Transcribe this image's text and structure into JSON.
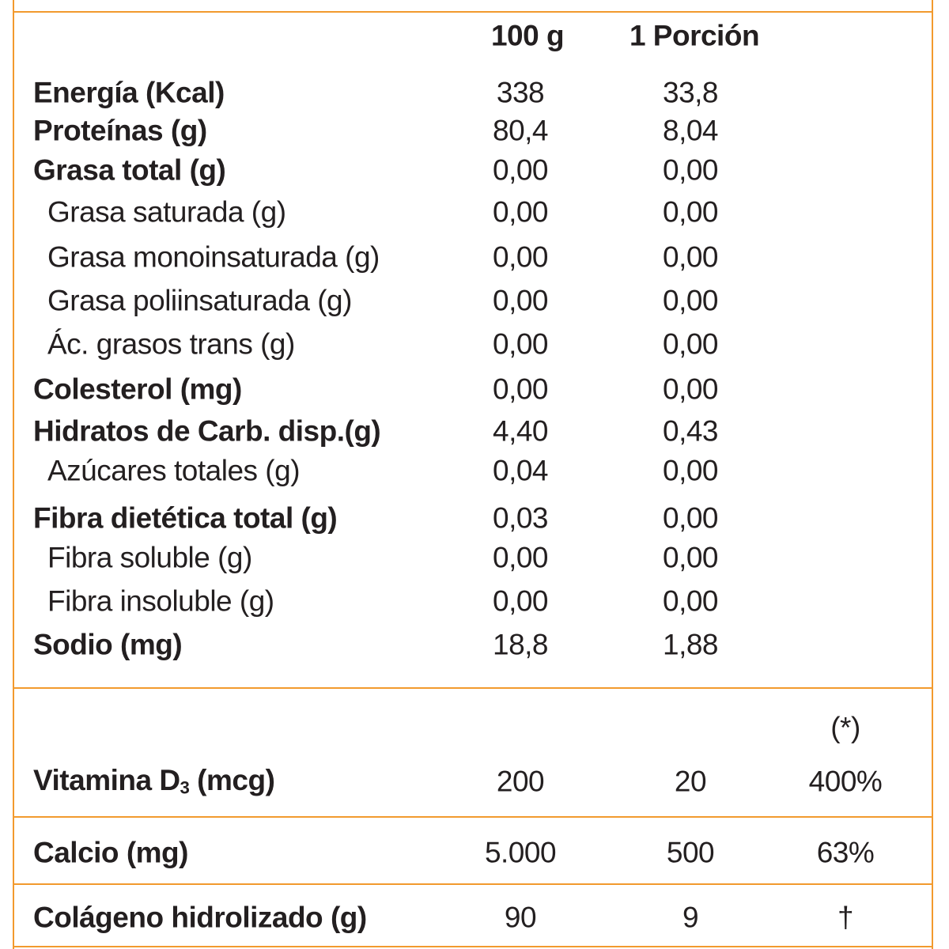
{
  "header": {
    "columns": [
      "100 g",
      "1 Porción"
    ]
  },
  "rows": [
    {
      "label": "Energía (Kcal)",
      "per_100g": "338",
      "per_portion": "33,8",
      "bold": true
    },
    {
      "label": "Proteínas (g)",
      "per_100g": "80,4",
      "per_portion": "8,04",
      "bold": true
    },
    {
      "label": "Grasa total (g)",
      "per_100g": "0,00",
      "per_portion": "0,00",
      "bold": true
    },
    {
      "label": "Grasa saturada (g)",
      "per_100g": "0,00",
      "per_portion": "0,00",
      "bold": false
    },
    {
      "label": "Grasa monoinsaturada (g)",
      "per_100g": "0,00",
      "per_portion": "0,00",
      "bold": false
    },
    {
      "label": "Grasa poliinsaturada (g)",
      "per_100g": "0,00",
      "per_portion": "0,00",
      "bold": false
    },
    {
      "label": "Ác. grasos trans (g)",
      "per_100g": "0,00",
      "per_portion": "0,00",
      "bold": false
    },
    {
      "label": "Colesterol (mg)",
      "per_100g": "0,00",
      "per_portion": "0,00",
      "bold": true
    },
    {
      "label": "Hidratos de Carb. disp.(g)",
      "per_100g": "4,40",
      "per_portion": "0,43",
      "bold": true
    },
    {
      "label": "Azúcares totales (g)",
      "per_100g": "0,04",
      "per_portion": "0,00",
      "bold": false
    },
    {
      "label": "Fibra dietética total (g)",
      "per_100g": "0,03",
      "per_portion": "0,00",
      "bold": true
    },
    {
      "label": "Fibra soluble (g)",
      "per_100g": "0,00",
      "per_portion": "0,00",
      "bold": false
    },
    {
      "label": "Fibra insoluble (g)",
      "per_100g": "0,00",
      "per_portion": "0,00",
      "bold": false
    },
    {
      "label": "Sodio (mg)",
      "per_100g": "18,8",
      "per_portion": "1,88",
      "bold": true
    }
  ],
  "percent_header": "(*)",
  "extra_rows": [
    {
      "label": "Vitamina D",
      "subscript": "3",
      "suffix": " (mcg)",
      "per_100g": "200",
      "per_portion": "20",
      "percent": "400%"
    },
    {
      "label": "Calcio (mg)",
      "per_100g": "5.000",
      "per_portion": "500",
      "percent": "63%"
    },
    {
      "label": "Colágeno hidrolizado (g)",
      "per_100g": "90",
      "per_portion": "9",
      "percent": "†"
    }
  ]
}
